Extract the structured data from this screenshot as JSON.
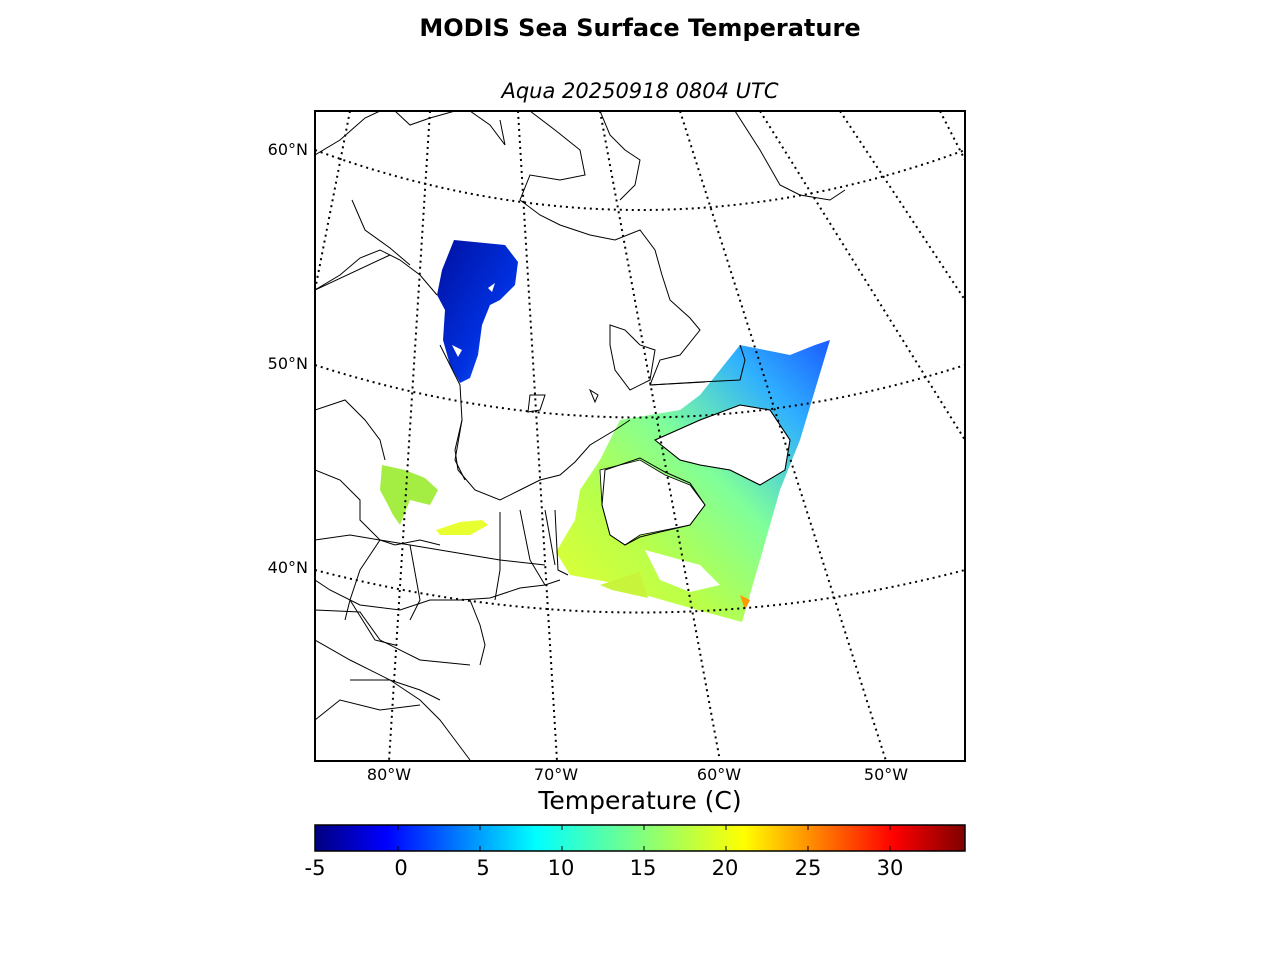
{
  "title": "MODIS Sea Surface Temperature",
  "subtitle": "Aqua 20250918 0804 UTC",
  "map": {
    "lat_labels": [
      "60°N",
      "50°N",
      "40°N"
    ],
    "lon_labels": [
      "80°W",
      "70°W",
      "60°W",
      "50°W"
    ],
    "graticule_style": "dotted",
    "coastline_color": "#000000"
  },
  "colorbar": {
    "title": "Temperature (C)",
    "ticks": [
      "-5",
      "0",
      "5",
      "10",
      "15",
      "20",
      "25",
      "30"
    ],
    "range": [
      -5,
      34.5
    ],
    "colormap": "jet"
  }
}
